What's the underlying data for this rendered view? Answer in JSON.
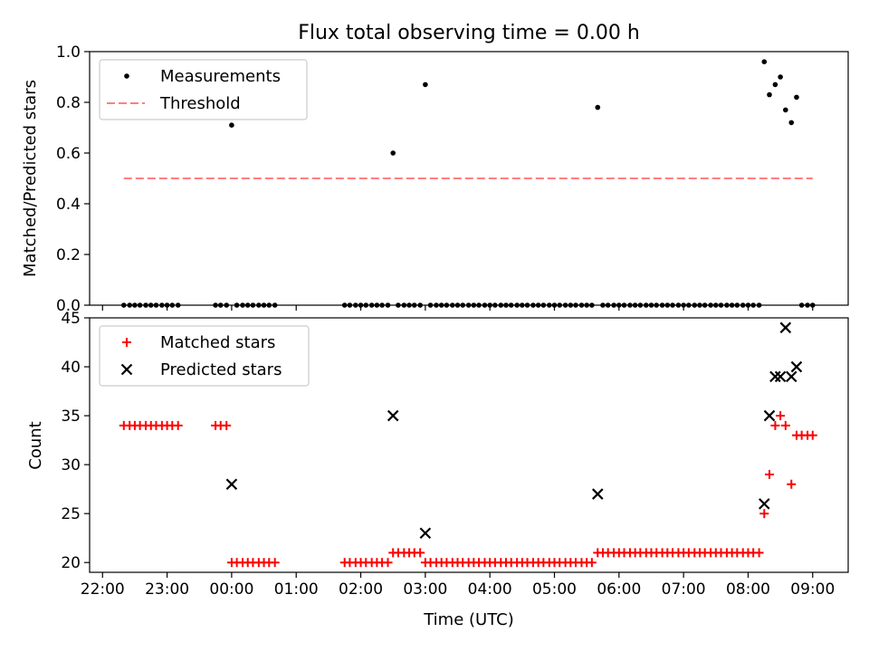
{
  "chart_data": {
    "type": "scatter",
    "title": "Flux total observing time = 0.00 h",
    "xlabel": "Time (UTC)",
    "x_unit": "hours from 22:00 UTC",
    "x_ticks": [
      "22:00",
      "23:00",
      "00:00",
      "01:00",
      "02:00",
      "03:00",
      "04:00",
      "05:00",
      "06:00",
      "07:00",
      "08:00",
      "09:00"
    ],
    "xlim": [
      -0.2,
      11.55
    ],
    "panels": [
      {
        "ylabel": "Matched/Predicted stars",
        "ylim": [
          0.0,
          1.0
        ],
        "y_ticks": [
          "0.0",
          "0.2",
          "0.4",
          "0.6",
          "0.8",
          "1.0"
        ],
        "legend": [
          "Measurements",
          "Threshold"
        ],
        "legend_placement": "top-left",
        "series": [
          {
            "name": "Measurements",
            "marker": "dot",
            "color": "#000000",
            "points": [
              [
                0.33,
                0
              ],
              [
                0.42,
                0
              ],
              [
                0.5,
                0
              ],
              [
                0.58,
                0
              ],
              [
                0.67,
                0
              ],
              [
                0.75,
                0
              ],
              [
                0.83,
                0
              ],
              [
                0.92,
                0
              ],
              [
                1.0,
                0
              ],
              [
                1.08,
                0
              ],
              [
                1.17,
                0
              ],
              [
                1.75,
                0
              ],
              [
                1.83,
                0
              ],
              [
                1.92,
                0
              ],
              [
                2.0,
                0.71
              ],
              [
                2.08,
                0
              ],
              [
                2.17,
                0
              ],
              [
                2.25,
                0
              ],
              [
                2.33,
                0
              ],
              [
                2.42,
                0
              ],
              [
                2.5,
                0
              ],
              [
                2.58,
                0
              ],
              [
                2.67,
                0
              ],
              [
                3.75,
                0
              ],
              [
                3.83,
                0
              ],
              [
                3.92,
                0
              ],
              [
                4.0,
                0
              ],
              [
                4.08,
                0
              ],
              [
                4.17,
                0
              ],
              [
                4.25,
                0
              ],
              [
                4.33,
                0
              ],
              [
                4.42,
                0
              ],
              [
                4.5,
                0.6
              ],
              [
                4.58,
                0
              ],
              [
                4.67,
                0
              ],
              [
                4.75,
                0
              ],
              [
                4.83,
                0
              ],
              [
                4.92,
                0
              ],
              [
                5.0,
                0.87
              ],
              [
                5.08,
                0
              ],
              [
                5.17,
                0
              ],
              [
                5.25,
                0
              ],
              [
                5.33,
                0
              ],
              [
                5.42,
                0
              ],
              [
                5.5,
                0
              ],
              [
                5.58,
                0
              ],
              [
                5.67,
                0
              ],
              [
                5.75,
                0
              ],
              [
                5.83,
                0
              ],
              [
                5.92,
                0
              ],
              [
                6.0,
                0
              ],
              [
                6.08,
                0
              ],
              [
                6.17,
                0
              ],
              [
                6.25,
                0
              ],
              [
                6.33,
                0
              ],
              [
                6.42,
                0
              ],
              [
                6.5,
                0
              ],
              [
                6.58,
                0
              ],
              [
                6.67,
                0
              ],
              [
                6.75,
                0
              ],
              [
                6.83,
                0
              ],
              [
                6.92,
                0
              ],
              [
                7.0,
                0
              ],
              [
                7.08,
                0
              ],
              [
                7.17,
                0
              ],
              [
                7.25,
                0
              ],
              [
                7.33,
                0
              ],
              [
                7.42,
                0
              ],
              [
                7.5,
                0
              ],
              [
                7.58,
                0
              ],
              [
                7.67,
                0.78
              ],
              [
                7.75,
                0
              ],
              [
                7.83,
                0
              ],
              [
                7.92,
                0
              ],
              [
                8.0,
                0
              ],
              [
                8.08,
                0
              ],
              [
                8.17,
                0
              ],
              [
                8.25,
                0
              ],
              [
                8.33,
                0
              ],
              [
                8.42,
                0
              ],
              [
                8.5,
                0
              ],
              [
                8.58,
                0
              ],
              [
                8.67,
                0
              ],
              [
                8.75,
                0
              ],
              [
                8.83,
                0
              ],
              [
                8.92,
                0
              ],
              [
                9.0,
                0
              ],
              [
                9.08,
                0
              ],
              [
                9.17,
                0
              ],
              [
                9.25,
                0
              ],
              [
                9.33,
                0
              ],
              [
                9.42,
                0
              ],
              [
                9.5,
                0
              ],
              [
                9.58,
                0
              ],
              [
                9.67,
                0
              ],
              [
                9.75,
                0
              ],
              [
                9.83,
                0
              ],
              [
                9.92,
                0
              ],
              [
                10.0,
                0
              ],
              [
                10.08,
                0
              ],
              [
                10.17,
                0
              ],
              [
                10.25,
                0.96
              ],
              [
                10.33,
                0.83
              ],
              [
                10.42,
                0.87
              ],
              [
                10.5,
                0.9
              ],
              [
                10.58,
                0.77
              ],
              [
                10.67,
                0.72
              ],
              [
                10.75,
                0.82
              ],
              [
                10.83,
                0
              ],
              [
                10.92,
                0
              ],
              [
                11.0,
                0
              ]
            ]
          },
          {
            "name": "Threshold",
            "style": "dashed",
            "color": "#ff7f7f",
            "x": [
              0.33,
              11.0
            ],
            "y": [
              0.5,
              0.5
            ]
          }
        ]
      },
      {
        "ylabel": "Count",
        "ylim": [
          19,
          45
        ],
        "y_ticks": [
          "20",
          "25",
          "30",
          "35",
          "40",
          "45"
        ],
        "legend": [
          "Matched stars",
          "Predicted stars"
        ],
        "legend_placement": "top-left",
        "series": [
          {
            "name": "Matched stars",
            "marker": "plus",
            "color": "#ff0000",
            "points": [
              [
                0.33,
                34
              ],
              [
                0.42,
                34
              ],
              [
                0.5,
                34
              ],
              [
                0.58,
                34
              ],
              [
                0.67,
                34
              ],
              [
                0.75,
                34
              ],
              [
                0.83,
                34
              ],
              [
                0.92,
                34
              ],
              [
                1.0,
                34
              ],
              [
                1.08,
                34
              ],
              [
                1.17,
                34
              ],
              [
                1.75,
                34
              ],
              [
                1.83,
                34
              ],
              [
                1.92,
                34
              ],
              [
                2.0,
                20
              ],
              [
                2.08,
                20
              ],
              [
                2.17,
                20
              ],
              [
                2.25,
                20
              ],
              [
                2.33,
                20
              ],
              [
                2.42,
                20
              ],
              [
                2.5,
                20
              ],
              [
                2.58,
                20
              ],
              [
                2.67,
                20
              ],
              [
                3.75,
                20
              ],
              [
                3.83,
                20
              ],
              [
                3.92,
                20
              ],
              [
                4.0,
                20
              ],
              [
                4.08,
                20
              ],
              [
                4.17,
                20
              ],
              [
                4.25,
                20
              ],
              [
                4.33,
                20
              ],
              [
                4.42,
                20
              ],
              [
                4.5,
                21
              ],
              [
                4.58,
                21
              ],
              [
                4.67,
                21
              ],
              [
                4.75,
                21
              ],
              [
                4.83,
                21
              ],
              [
                4.92,
                21
              ],
              [
                5.0,
                20
              ],
              [
                5.08,
                20
              ],
              [
                5.17,
                20
              ],
              [
                5.25,
                20
              ],
              [
                5.33,
                20
              ],
              [
                5.42,
                20
              ],
              [
                5.5,
                20
              ],
              [
                5.58,
                20
              ],
              [
                5.67,
                20
              ],
              [
                5.75,
                20
              ],
              [
                5.83,
                20
              ],
              [
                5.92,
                20
              ],
              [
                6.0,
                20
              ],
              [
                6.08,
                20
              ],
              [
                6.17,
                20
              ],
              [
                6.25,
                20
              ],
              [
                6.33,
                20
              ],
              [
                6.42,
                20
              ],
              [
                6.5,
                20
              ],
              [
                6.58,
                20
              ],
              [
                6.67,
                20
              ],
              [
                6.75,
                20
              ],
              [
                6.83,
                20
              ],
              [
                6.92,
                20
              ],
              [
                7.0,
                20
              ],
              [
                7.08,
                20
              ],
              [
                7.17,
                20
              ],
              [
                7.25,
                20
              ],
              [
                7.33,
                20
              ],
              [
                7.42,
                20
              ],
              [
                7.5,
                20
              ],
              [
                7.58,
                20
              ],
              [
                7.67,
                21
              ],
              [
                7.75,
                21
              ],
              [
                7.83,
                21
              ],
              [
                7.92,
                21
              ],
              [
                8.0,
                21
              ],
              [
                8.08,
                21
              ],
              [
                8.17,
                21
              ],
              [
                8.25,
                21
              ],
              [
                8.33,
                21
              ],
              [
                8.42,
                21
              ],
              [
                8.5,
                21
              ],
              [
                8.58,
                21
              ],
              [
                8.67,
                21
              ],
              [
                8.75,
                21
              ],
              [
                8.83,
                21
              ],
              [
                8.92,
                21
              ],
              [
                9.0,
                21
              ],
              [
                9.08,
                21
              ],
              [
                9.17,
                21
              ],
              [
                9.25,
                21
              ],
              [
                9.33,
                21
              ],
              [
                9.42,
                21
              ],
              [
                9.5,
                21
              ],
              [
                9.58,
                21
              ],
              [
                9.67,
                21
              ],
              [
                9.75,
                21
              ],
              [
                9.83,
                21
              ],
              [
                9.92,
                21
              ],
              [
                10.0,
                21
              ],
              [
                10.08,
                21
              ],
              [
                10.17,
                21
              ],
              [
                10.25,
                25
              ],
              [
                10.33,
                29
              ],
              [
                10.42,
                34
              ],
              [
                10.5,
                35
              ],
              [
                10.58,
                34
              ],
              [
                10.67,
                28
              ],
              [
                10.75,
                33
              ],
              [
                10.83,
                33
              ],
              [
                10.92,
                33
              ],
              [
                11.0,
                33
              ]
            ]
          },
          {
            "name": "Predicted stars",
            "marker": "x",
            "color": "#000000",
            "points": [
              [
                2.0,
                28
              ],
              [
                4.5,
                35
              ],
              [
                5.0,
                23
              ],
              [
                7.67,
                27
              ],
              [
                10.25,
                26
              ],
              [
                10.33,
                35
              ],
              [
                10.42,
                39
              ],
              [
                10.5,
                39
              ],
              [
                10.58,
                44
              ],
              [
                10.67,
                39
              ],
              [
                10.75,
                40
              ]
            ]
          }
        ]
      }
    ]
  }
}
